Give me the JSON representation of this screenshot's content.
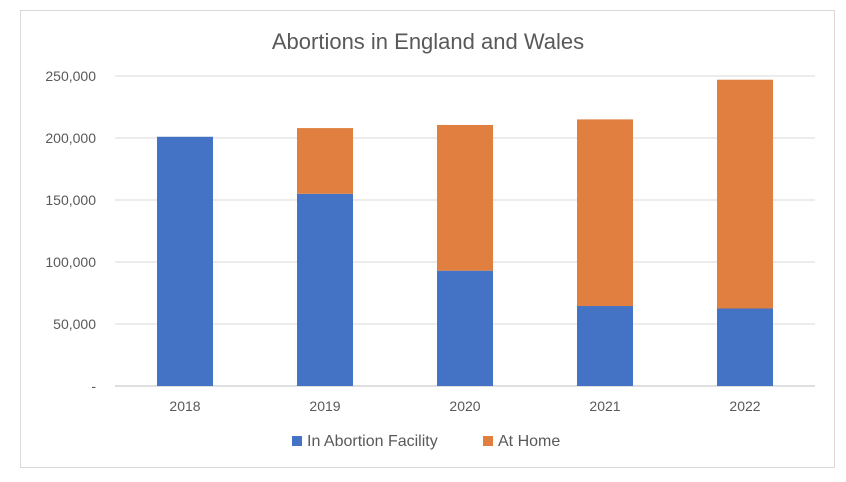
{
  "chart_data": {
    "type": "bar",
    "stacked": true,
    "title": "Abortions in England and Wales",
    "categories": [
      "2018",
      "2019",
      "2020",
      "2021",
      "2022"
    ],
    "series": [
      {
        "name": "In Abortion Facility",
        "color": "#4472c4",
        "values": [
          201000,
          155000,
          93000,
          64500,
          62500
        ]
      },
      {
        "name": "At Home",
        "color": "#e07f3f",
        "values": [
          0,
          53000,
          117500,
          150500,
          184500
        ]
      }
    ],
    "y_ticks": [
      "-",
      "50,000",
      "100,000",
      "150,000",
      "200,000",
      "250,000"
    ],
    "ylim": [
      0,
      250000
    ],
    "grid": true,
    "legend": "bottom"
  }
}
